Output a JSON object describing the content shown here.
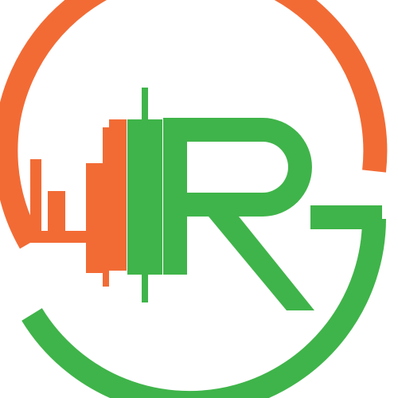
{
  "logo": {
    "description_icon": "rg-candlestick-circle-logo",
    "colors": {
      "orange": "#f26b35",
      "green": "#3fb44a",
      "background": "#ffffff"
    },
    "candles": [
      {
        "color": "orange",
        "role": "small-candle"
      },
      {
        "color": "orange",
        "role": "medium-candle"
      },
      {
        "color": "orange",
        "role": "tall-candle"
      },
      {
        "color": "green",
        "role": "tallest-candle"
      }
    ]
  }
}
